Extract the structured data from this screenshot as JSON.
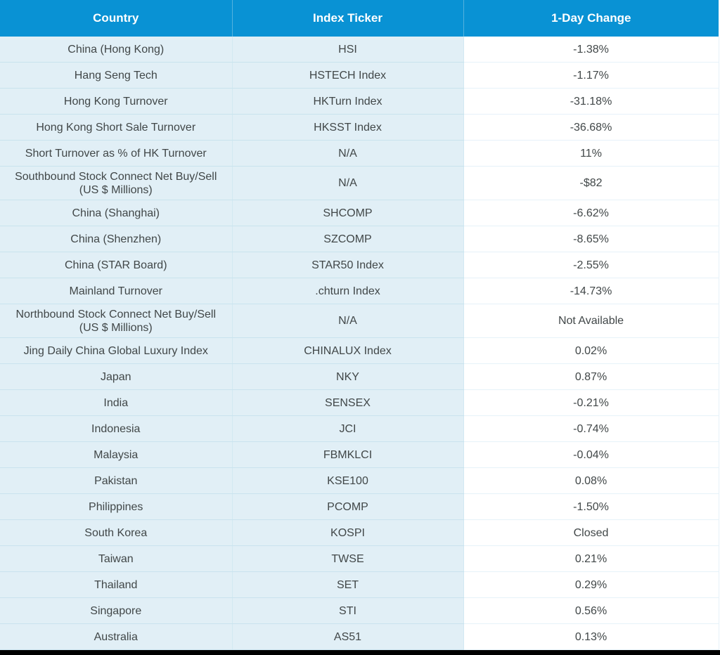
{
  "chart_data": {
    "type": "table",
    "columns": [
      "Country",
      "Index Ticker",
      "1-Day Change"
    ],
    "rows": [
      {
        "country": "China (Hong Kong)",
        "ticker": "HSI",
        "change": "-1.38%"
      },
      {
        "country": "Hang Seng Tech",
        "ticker": "HSTECH Index",
        "change": "-1.17%"
      },
      {
        "country": "Hong Kong Turnover",
        "ticker": "HKTurn Index",
        "change": "-31.18%"
      },
      {
        "country": "Hong Kong Short Sale Turnover",
        "ticker": "HKSST Index",
        "change": "-36.68%"
      },
      {
        "country": "Short Turnover as % of HK Turnover",
        "ticker": "N/A",
        "change": "11%"
      },
      {
        "country": "Southbound Stock Connect Net Buy/Sell (US $ Millions)",
        "ticker": "N/A",
        "change": "-$82",
        "tall": true
      },
      {
        "country": "China (Shanghai)",
        "ticker": "SHCOMP",
        "change": "-6.62%"
      },
      {
        "country": "China (Shenzhen)",
        "ticker": "SZCOMP",
        "change": "-8.65%"
      },
      {
        "country": "China (STAR Board)",
        "ticker": "STAR50 Index",
        "change": "-2.55%"
      },
      {
        "country": "Mainland Turnover",
        "ticker": ".chturn Index",
        "change": "-14.73%"
      },
      {
        "country": "Northbound Stock Connect Net Buy/Sell (US $ Millions)",
        "ticker": "N/A",
        "change": "Not Available",
        "tall": true
      },
      {
        "country": "Jing Daily China Global Luxury Index",
        "ticker": "CHINALUX Index",
        "change": "0.02%"
      },
      {
        "country": "Japan",
        "ticker": "NKY",
        "change": "0.87%"
      },
      {
        "country": "India",
        "ticker": "SENSEX",
        "change": "-0.21%"
      },
      {
        "country": "Indonesia",
        "ticker": "JCI",
        "change": "-0.74%"
      },
      {
        "country": "Malaysia",
        "ticker": "FBMKLCI",
        "change": "-0.04%"
      },
      {
        "country": "Pakistan",
        "ticker": "KSE100",
        "change": "0.08%"
      },
      {
        "country": "Philippines",
        "ticker": "PCOMP",
        "change": "-1.50%"
      },
      {
        "country": "South Korea",
        "ticker": "KOSPI",
        "change": "Closed"
      },
      {
        "country": "Taiwan",
        "ticker": "TWSE",
        "change": "0.21%"
      },
      {
        "country": "Thailand",
        "ticker": "SET",
        "change": "0.29%"
      },
      {
        "country": "Singapore",
        "ticker": "STI",
        "change": "0.56%"
      },
      {
        "country": "Australia",
        "ticker": "AS51",
        "change": "0.13%"
      }
    ],
    "layout": {
      "header_position": "top",
      "grid": true,
      "value_column_alignment": "center"
    }
  },
  "colors": {
    "header_bg": "#0992d4",
    "header_divider": "#54b2de",
    "header_text": "#ffffff",
    "cell_bg": "#e1eff6",
    "cell_border": "#c9e3ee",
    "cell_divider": "#d2e9f2",
    "value_bg": "#ffffff",
    "value_border": "#e6f2f9",
    "text": "#414748",
    "bottom_bar": "#000000"
  }
}
